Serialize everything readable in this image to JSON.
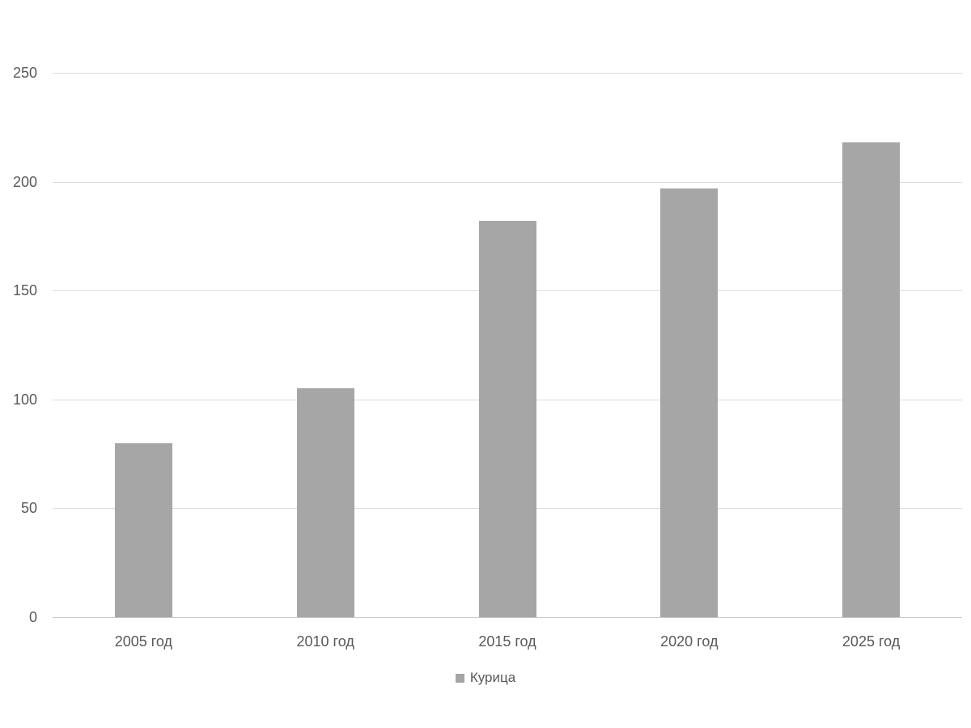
{
  "chart_data": {
    "type": "bar",
    "title": "",
    "xlabel": "",
    "ylabel": "",
    "categories": [
      "2005 год",
      "2010 год",
      "2015 год",
      "2020 год",
      "2025 год"
    ],
    "series": [
      {
        "name": "Курица",
        "values": [
          80,
          105,
          182,
          197,
          218
        ]
      }
    ],
    "ylim": [
      0,
      250
    ],
    "yticks": [
      0,
      50,
      100,
      150,
      200,
      250
    ],
    "grid": true,
    "legend_position": "bottom",
    "colors": {
      "bar": "#a6a6a6",
      "gridline": "#dcdcdc",
      "axis_line": "#c9c9c9",
      "tick_text": "#595959",
      "background": "#ffffff"
    }
  },
  "legend": {
    "label": "Курица"
  }
}
